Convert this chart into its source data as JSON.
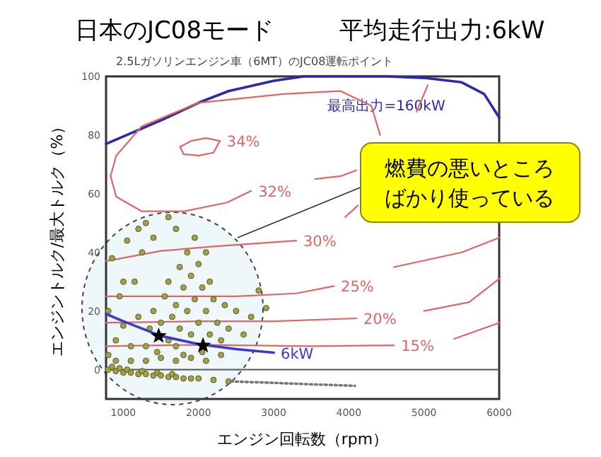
{
  "chart_data": {
    "type": "line",
    "title": "日本のJC08モード",
    "subtitle": "平均走行出力:6kW",
    "xlabel": "エンジン回転数（rpm）",
    "ylabel": "エンジントルク/最大トルク（%）",
    "xlim": [
      770,
      6000
    ],
    "ylim": [
      -10,
      100
    ],
    "xticks": [
      1000,
      2000,
      3000,
      4000,
      5000,
      6000
    ],
    "yticks": [
      0,
      20,
      40,
      60,
      80,
      100
    ],
    "ref_lines": [
      {
        "axis": "y",
        "value": 0,
        "color": "#555555"
      }
    ],
    "annotations": [
      "2.5Lガソリンエンジン車（6MT）のJC08運転ポイント",
      "燃費の悪いところばかり使っている"
    ],
    "series": [
      {
        "color": "#2a2aaa",
        "name": "最高出力=160kW",
        "x": [
          770,
          1500,
          2000,
          2400,
          3000,
          3400,
          4500,
          5000,
          5500,
          5800,
          6000
        ],
        "values": [
          77,
          85,
          91,
          95,
          98.5,
          100,
          100,
          99.5,
          98,
          94,
          86
        ]
      },
      {
        "color": "#e06666",
        "name": "34%",
        "x": [
          1755,
          1900,
          2100,
          2283
        ],
        "values": [
          76,
          78,
          79,
          78
        ]
      },
      {
        "color": "#e06666",
        "x": [
          1755,
          1800,
          2000,
          2200,
          2283
        ],
        "values": [
          76,
          73.5,
          73,
          74,
          78
        ]
      },
      {
        "color": "#e06666",
        "name": "32%",
        "x": [
          830,
          905,
          1245,
          1810,
          2380,
          2700
        ],
        "values": [
          66,
          59,
          54,
          54,
          57,
          61
        ]
      },
      {
        "color": "#e06666",
        "x": [
          830,
          905,
          1245,
          2000,
          3130,
          3890,
          4300,
          4415
        ],
        "values": [
          66,
          73,
          83,
          91,
          94,
          95,
          90,
          80
        ]
      },
      {
        "color": "#e06666",
        "x": [
          3550,
          3890,
          4100
        ],
        "values": [
          65,
          66,
          68
        ]
      },
      {
        "color": "#e06666",
        "name": "30%",
        "x": [
          770,
          1500,
          2200,
          3300
        ],
        "values": [
          37,
          40.5,
          42,
          44
        ]
      },
      {
        "color": "#e06666",
        "x": [
          3950,
          4120
        ],
        "values": [
          52,
          56
        ]
      },
      {
        "color": "#e06666",
        "x": [
          4900,
          5050
        ],
        "values": [
          88,
          97
        ]
      },
      {
        "color": "#e06666",
        "name": "25%",
        "x": [
          770,
          1500,
          2500,
          3300,
          3800
        ],
        "values": [
          25,
          25,
          25,
          26,
          28.5
        ]
      },
      {
        "color": "#e06666",
        "x": [
          4600,
          5500,
          6000
        ],
        "values": [
          35,
          40,
          45
        ]
      },
      {
        "color": "#e06666",
        "name": "20%",
        "x": [
          770,
          2000,
          3000,
          4100
        ],
        "values": [
          16,
          16.5,
          16.5,
          17.5
        ]
      },
      {
        "color": "#e06666",
        "x": [
          5000,
          5600,
          6000
        ],
        "values": [
          20,
          23,
          31
        ]
      },
      {
        "color": "#e06666",
        "name": "15%",
        "x": [
          770,
          2000,
          3500,
          4600
        ],
        "values": [
          8,
          8.5,
          8,
          8.3
        ]
      },
      {
        "color": "#e06666",
        "x": [
          5400,
          6000
        ],
        "values": [
          10.5,
          16
        ]
      },
      {
        "type": "scatter",
        "marker": "circle",
        "color": "#a3a048",
        "x": [
          800,
          850,
          900,
          950,
          1000,
          1050,
          1100,
          1200,
          1250,
          1300,
          1400,
          1450,
          1500,
          1600,
          1650,
          1700,
          1800,
          1900,
          2000,
          2200,
          2400,
          800,
          800,
          850,
          900,
          950,
          1000,
          1050,
          1100,
          1150,
          1200,
          1250,
          1300,
          1600,
          1200,
          1400,
          1700,
          1000,
          900,
          1100,
          1300,
          1500,
          1700,
          1900,
          2100,
          2300,
          1300,
          1350,
          1400,
          1450,
          1500,
          1550,
          1600,
          1600,
          1650,
          1700,
          1700,
          1750,
          1750,
          1800,
          1800,
          1850,
          1850,
          1900,
          1900,
          1950,
          1950,
          2000,
          2000,
          2050,
          2050,
          2100,
          2100,
          2150,
          2150,
          2200,
          2250,
          2300,
          2350,
          2400,
          2500,
          2600,
          2700,
          2800,
          2900
        ],
        "values": [
          0,
          1,
          -0.5,
          0.5,
          -1,
          0,
          -1,
          -1.5,
          -0.5,
          -1.5,
          -2,
          -1,
          -2,
          -2.5,
          -1.5,
          -2.5,
          -3,
          -3,
          -3,
          -3.5,
          -4,
          5,
          20,
          38,
          10,
          25,
          15,
          44,
          8,
          30,
          18,
          40,
          50,
          52,
          48,
          45,
          48,
          30,
          3,
          3,
          3,
          4,
          3,
          4,
          3,
          5,
          8,
          14,
          20,
          6,
          16,
          25,
          10,
          30,
          18,
          22,
          8,
          35,
          14,
          28,
          5,
          20,
          40,
          12,
          32,
          24,
          45,
          16,
          36,
          28,
          6,
          20,
          40,
          12,
          30,
          24,
          16,
          10,
          22,
          14,
          20,
          12,
          18,
          27,
          21
        ]
      },
      {
        "color": "#3a3ad0",
        "name": "6kW",
        "x": [
          770,
          1000,
          1500,
          2000,
          2500,
          3000
        ],
        "values": [
          19,
          16.5,
          11.5,
          8.7,
          7,
          5.8
        ]
      },
      {
        "type": "scatter",
        "marker": "star",
        "color": "#000000",
        "x": [
          1470,
          2060
        ],
        "values": [
          11.5,
          8.2
        ]
      },
      {
        "line_style": "dotted",
        "color": "#777777",
        "x": [
          2430,
          3000,
          3500,
          4080
        ],
        "values": [
          -4,
          -4.5,
          -5,
          -5.5
        ]
      }
    ]
  }
}
